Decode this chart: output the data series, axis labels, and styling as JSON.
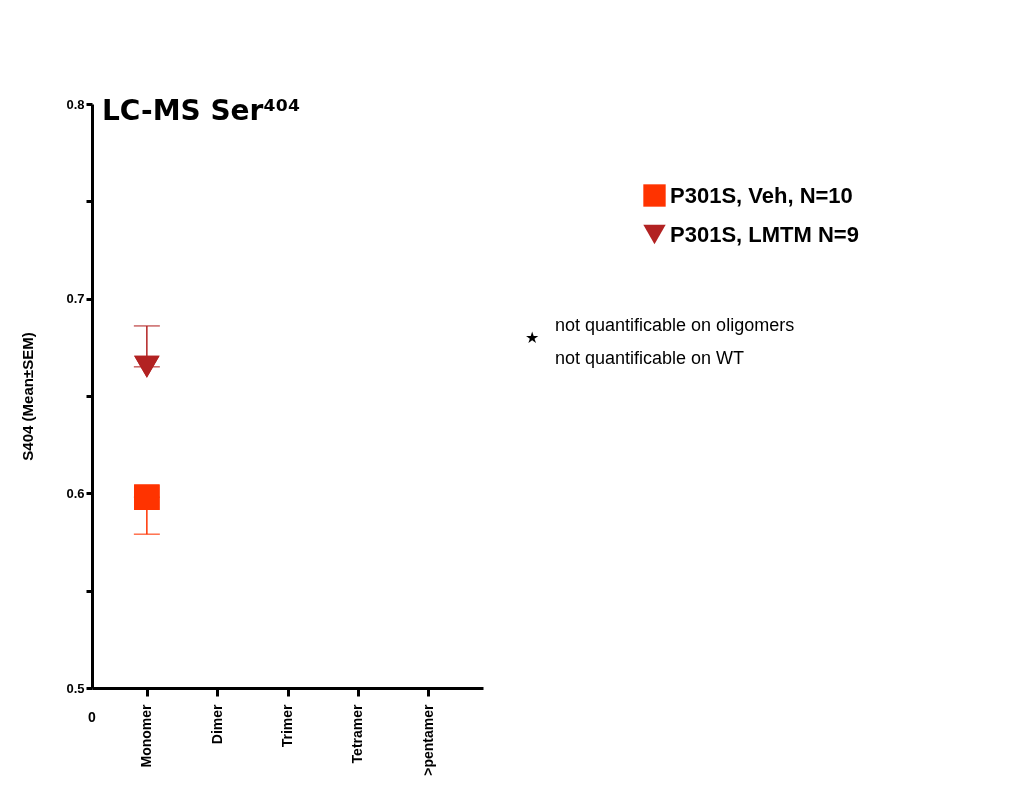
{
  "chart_data": {
    "type": "scatter",
    "title": "LC-MS Ser⁴⁰⁴",
    "ylabel": "S404 (Mean±SEM)",
    "categories": [
      "Monomer",
      "Dimer",
      "Trimer",
      "Tetramer",
      ">pentamer"
    ],
    "ylim": [
      0.5,
      0.8
    ],
    "yticks": [
      0.5,
      {
        "value": 0.55,
        "label": null
      },
      0.6,
      {
        "value": 0.65,
        "label": null
      },
      0.7,
      {
        "value": 0.75,
        "label": null
      },
      0.8
    ],
    "series": [
      {
        "name": "P301S, Veh, N=10",
        "color": "#ff3300",
        "marker": "square",
        "values": [
          0.598,
          null,
          null,
          null,
          null
        ],
        "errors": [
          [
            0.579,
            0.598
          ],
          null,
          null,
          null,
          null
        ]
      },
      {
        "name": "P301S, LMTM N=9",
        "color": "#b22222",
        "marker": "triangle",
        "values": [
          0.665,
          null,
          null,
          null,
          null
        ],
        "errors": [
          [
            0.665,
            0.686
          ],
          null,
          null,
          null,
          null
        ]
      }
    ],
    "legend": "right",
    "grid": false,
    "annotations": [
      "0",
      "★",
      "not quantificable on oligomers",
      "not quantificable on WT"
    ]
  }
}
